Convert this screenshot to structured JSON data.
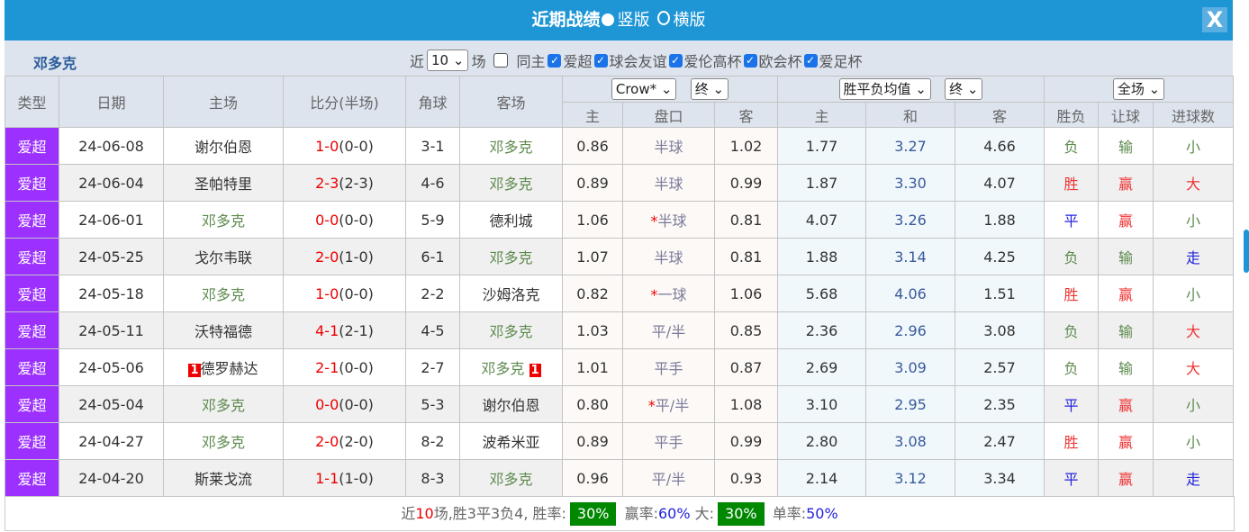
{
  "title": {
    "main": "近期战绩",
    "opt1": "竖版",
    "opt2": "横版",
    "close": "X"
  },
  "filter": {
    "team": "邓多克",
    "near": "近",
    "count": "10",
    "games": "场",
    "same_home": "同主",
    "leagues": [
      "爱超",
      "球会友谊",
      "爱伦高杯",
      "欧会杯",
      "爱足杯"
    ]
  },
  "header": {
    "type": "类型",
    "date": "日期",
    "home": "主场",
    "score": "比分(半场)",
    "corner": "角球",
    "away": "客场",
    "company": "Crow*",
    "final1": "终",
    "odds_kind": "胜平负均值",
    "final2": "终",
    "period": "全场",
    "ah": [
      "主",
      "盘口",
      "客"
    ],
    "eu": [
      "主",
      "和",
      "客"
    ],
    "res": [
      "胜负",
      "让球",
      "进球数"
    ]
  },
  "rows": [
    {
      "type": "爱超",
      "date": "24-06-08",
      "home": "谢尔伯恩",
      "score": "1-0",
      "half": "(0-0)",
      "corner": "3-1",
      "away": "邓多克",
      "ah": [
        "0.86",
        "半球",
        "1.02"
      ],
      "eu": [
        "1.77",
        "3.27",
        "4.66"
      ],
      "res": [
        "负",
        "输",
        "小"
      ]
    },
    {
      "type": "爱超",
      "date": "24-06-04",
      "home": "圣帕特里",
      "score": "2-3",
      "half": "(2-3)",
      "corner": "4-6",
      "away": "邓多克",
      "ah": [
        "0.89",
        "半球",
        "0.99"
      ],
      "eu": [
        "1.87",
        "3.30",
        "4.07"
      ],
      "res": [
        "胜",
        "赢",
        "大"
      ]
    },
    {
      "type": "爱超",
      "date": "24-06-01",
      "home": "邓多克",
      "score": "0-0",
      "half": "(0-0)",
      "corner": "5-9",
      "away": "德利城",
      "ah": [
        "1.06",
        "*半球",
        "0.81"
      ],
      "eu": [
        "4.07",
        "3.26",
        "1.88"
      ],
      "res": [
        "平",
        "赢",
        "小"
      ]
    },
    {
      "type": "爱超",
      "date": "24-05-25",
      "home": "戈尔韦联",
      "score": "2-0",
      "half": "(1-0)",
      "corner": "6-1",
      "away": "邓多克",
      "ah": [
        "1.07",
        "半球",
        "0.81"
      ],
      "eu": [
        "1.88",
        "3.14",
        "4.25"
      ],
      "res": [
        "负",
        "输",
        "走"
      ]
    },
    {
      "type": "爱超",
      "date": "24-05-18",
      "home": "邓多克",
      "score": "1-0",
      "half": "(0-0)",
      "corner": "2-2",
      "away": "沙姆洛克",
      "ah": [
        "0.82",
        "*一球",
        "1.06"
      ],
      "eu": [
        "5.68",
        "4.06",
        "1.51"
      ],
      "res": [
        "胜",
        "赢",
        "小"
      ]
    },
    {
      "type": "爱超",
      "date": "24-05-11",
      "home": "沃特福德",
      "score": "4-1",
      "half": "(2-1)",
      "corner": "4-5",
      "away": "邓多克",
      "ah": [
        "1.03",
        "平/半",
        "0.85"
      ],
      "eu": [
        "2.36",
        "2.96",
        "3.08"
      ],
      "res": [
        "负",
        "输",
        "大"
      ]
    },
    {
      "type": "爱超",
      "date": "24-05-06",
      "home": "德罗赫达",
      "home_card": "1",
      "score": "2-1",
      "half": "(0-0)",
      "corner": "2-7",
      "away": "邓多克",
      "away_card": "1",
      "ah": [
        "1.01",
        "平手",
        "0.87"
      ],
      "eu": [
        "2.69",
        "3.09",
        "2.57"
      ],
      "res": [
        "负",
        "输",
        "大"
      ]
    },
    {
      "type": "爱超",
      "date": "24-05-04",
      "home": "邓多克",
      "score": "0-0",
      "half": "(0-0)",
      "corner": "5-3",
      "away": "谢尔伯恩",
      "ah": [
        "0.80",
        "*平/半",
        "1.08"
      ],
      "eu": [
        "3.10",
        "2.95",
        "2.35"
      ],
      "res": [
        "平",
        "赢",
        "小"
      ]
    },
    {
      "type": "爱超",
      "date": "24-04-27",
      "home": "邓多克",
      "score": "2-0",
      "half": "(2-0)",
      "corner": "8-2",
      "away": "波希米亚",
      "ah": [
        "0.89",
        "平手",
        "0.99"
      ],
      "eu": [
        "2.80",
        "3.08",
        "2.47"
      ],
      "res": [
        "胜",
        "赢",
        "小"
      ]
    },
    {
      "type": "爱超",
      "date": "24-04-20",
      "home": "斯莱戈流",
      "score": "1-1",
      "half": "(1-0)",
      "corner": "8-3",
      "away": "邓多克",
      "ah": [
        "0.96",
        "平/半",
        "0.93"
      ],
      "eu": [
        "2.14",
        "3.12",
        "3.34"
      ],
      "res": [
        "平",
        "赢",
        "走"
      ]
    }
  ],
  "footer": {
    "near": "近",
    "n": "10",
    "summary": "场,胜3平3负4, 胜率:",
    "win_rate": "30%",
    "ying_label": "赢率:",
    "ying_rate": "60%",
    "big_label": "大:",
    "big_rate": "30%",
    "odd_label": "单率:",
    "odd_rate": "50%"
  },
  "colors": {
    "title_bg": "#1e96d6",
    "type_bg": "#9b30ff",
    "green_box": "#008800"
  }
}
